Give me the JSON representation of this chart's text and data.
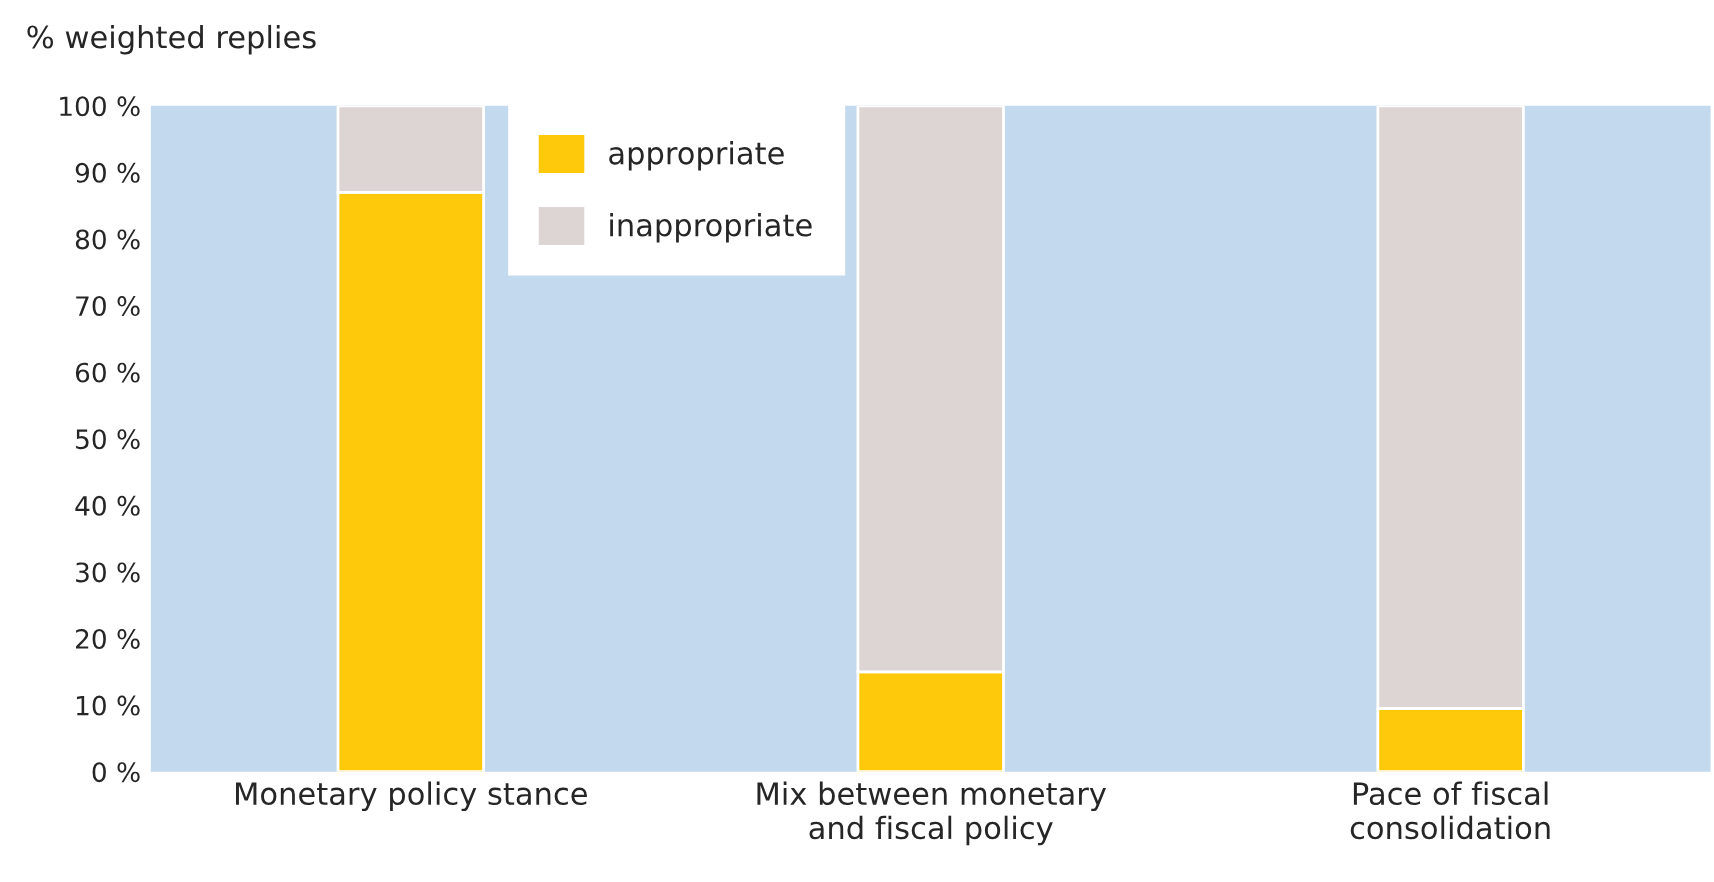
{
  "chart_data": {
    "type": "bar",
    "stacked": true,
    "ylabel": "% weighted replies",
    "categories": [
      "Monetary policy stance",
      "Mix between monetary\nand fiscal policy",
      "Pace of fiscal\nconsolidation"
    ],
    "series": [
      {
        "name": "appropriate",
        "color": "#fec90a",
        "values": [
          87,
          15,
          9.5
        ]
      },
      {
        "name": "inappropriate",
        "color": "#ddd5d3",
        "values": [
          13,
          85,
          90.5
        ]
      }
    ],
    "ylim": [
      0,
      100
    ],
    "yticks": [
      {
        "value": 0,
        "label": "0 %"
      },
      {
        "value": 10,
        "label": "10 %"
      },
      {
        "value": 20,
        "label": "20 %"
      },
      {
        "value": 30,
        "label": "30 %"
      },
      {
        "value": 40,
        "label": "40 %"
      },
      {
        "value": 50,
        "label": "50 %"
      },
      {
        "value": 60,
        "label": "60 %"
      },
      {
        "value": 70,
        "label": "70 %"
      },
      {
        "value": 80,
        "label": "80 %"
      },
      {
        "value": 90,
        "label": "90 %"
      },
      {
        "value": 100,
        "label": "100 %"
      }
    ],
    "grid": false,
    "legend": "top left"
  }
}
